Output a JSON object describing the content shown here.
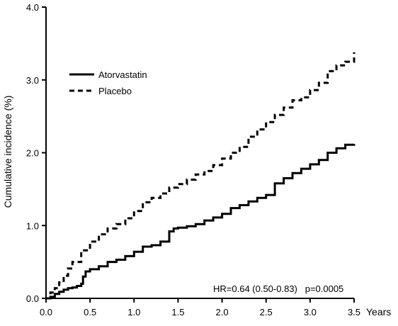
{
  "chart_data": {
    "type": "line",
    "title": "",
    "xlabel": "Years",
    "ylabel": "Cumulative incidence (%)",
    "xlim": [
      0,
      3.5
    ],
    "ylim": [
      0,
      4.0
    ],
    "x_ticks": [
      "0.0",
      "0.5",
      "1.0",
      "1.5",
      "2.0",
      "2.5",
      "3.0",
      "3.5"
    ],
    "y_ticks": [
      "0.0",
      "1.0",
      "2.0",
      "3.0",
      "4.0"
    ],
    "grid": false,
    "legend_position": "top-left",
    "annotation": "HR=0.64 (0.50-0.83)   p=0.0005",
    "series": [
      {
        "name": "Atorvastatin",
        "style": "solid",
        "color": "#000000",
        "points": [
          [
            0.0,
            0.0
          ],
          [
            0.05,
            0.02
          ],
          [
            0.1,
            0.06
          ],
          [
            0.15,
            0.09
          ],
          [
            0.2,
            0.12
          ],
          [
            0.25,
            0.14
          ],
          [
            0.3,
            0.15
          ],
          [
            0.35,
            0.17
          ],
          [
            0.4,
            0.2
          ],
          [
            0.42,
            0.3
          ],
          [
            0.45,
            0.37
          ],
          [
            0.5,
            0.4
          ],
          [
            0.6,
            0.44
          ],
          [
            0.7,
            0.5
          ],
          [
            0.8,
            0.53
          ],
          [
            0.9,
            0.58
          ],
          [
            1.0,
            0.64
          ],
          [
            1.1,
            0.71
          ],
          [
            1.2,
            0.73
          ],
          [
            1.3,
            0.78
          ],
          [
            1.4,
            0.92
          ],
          [
            1.45,
            0.96
          ],
          [
            1.5,
            0.97
          ],
          [
            1.6,
            0.99
          ],
          [
            1.7,
            1.02
          ],
          [
            1.8,
            1.07
          ],
          [
            1.9,
            1.11
          ],
          [
            2.0,
            1.16
          ],
          [
            2.1,
            1.24
          ],
          [
            2.2,
            1.28
          ],
          [
            2.3,
            1.33
          ],
          [
            2.4,
            1.38
          ],
          [
            2.5,
            1.42
          ],
          [
            2.6,
            1.58
          ],
          [
            2.7,
            1.65
          ],
          [
            2.8,
            1.72
          ],
          [
            2.9,
            1.78
          ],
          [
            3.0,
            1.84
          ],
          [
            3.1,
            1.9
          ],
          [
            3.2,
            2.0
          ],
          [
            3.3,
            2.06
          ],
          [
            3.4,
            2.11
          ],
          [
            3.5,
            2.12
          ]
        ]
      },
      {
        "name": "Placebo",
        "style": "dashed",
        "color": "#000000",
        "points": [
          [
            0.0,
            0.0
          ],
          [
            0.05,
            0.08
          ],
          [
            0.1,
            0.14
          ],
          [
            0.15,
            0.22
          ],
          [
            0.2,
            0.31
          ],
          [
            0.25,
            0.41
          ],
          [
            0.3,
            0.5
          ],
          [
            0.4,
            0.66
          ],
          [
            0.5,
            0.78
          ],
          [
            0.6,
            0.88
          ],
          [
            0.7,
            0.96
          ],
          [
            0.8,
            1.02
          ],
          [
            0.9,
            1.1
          ],
          [
            1.0,
            1.2
          ],
          [
            1.1,
            1.32
          ],
          [
            1.2,
            1.38
          ],
          [
            1.3,
            1.44
          ],
          [
            1.4,
            1.52
          ],
          [
            1.5,
            1.57
          ],
          [
            1.6,
            1.63
          ],
          [
            1.7,
            1.7
          ],
          [
            1.8,
            1.75
          ],
          [
            1.9,
            1.83
          ],
          [
            2.0,
            1.92
          ],
          [
            2.1,
            2.0
          ],
          [
            2.2,
            2.08
          ],
          [
            2.3,
            2.22
          ],
          [
            2.4,
            2.32
          ],
          [
            2.5,
            2.42
          ],
          [
            2.6,
            2.52
          ],
          [
            2.7,
            2.62
          ],
          [
            2.8,
            2.72
          ],
          [
            2.9,
            2.76
          ],
          [
            3.0,
            2.86
          ],
          [
            3.1,
            2.96
          ],
          [
            3.2,
            3.12
          ],
          [
            3.3,
            3.2
          ],
          [
            3.4,
            3.25
          ],
          [
            3.5,
            3.38
          ]
        ]
      }
    ]
  }
}
